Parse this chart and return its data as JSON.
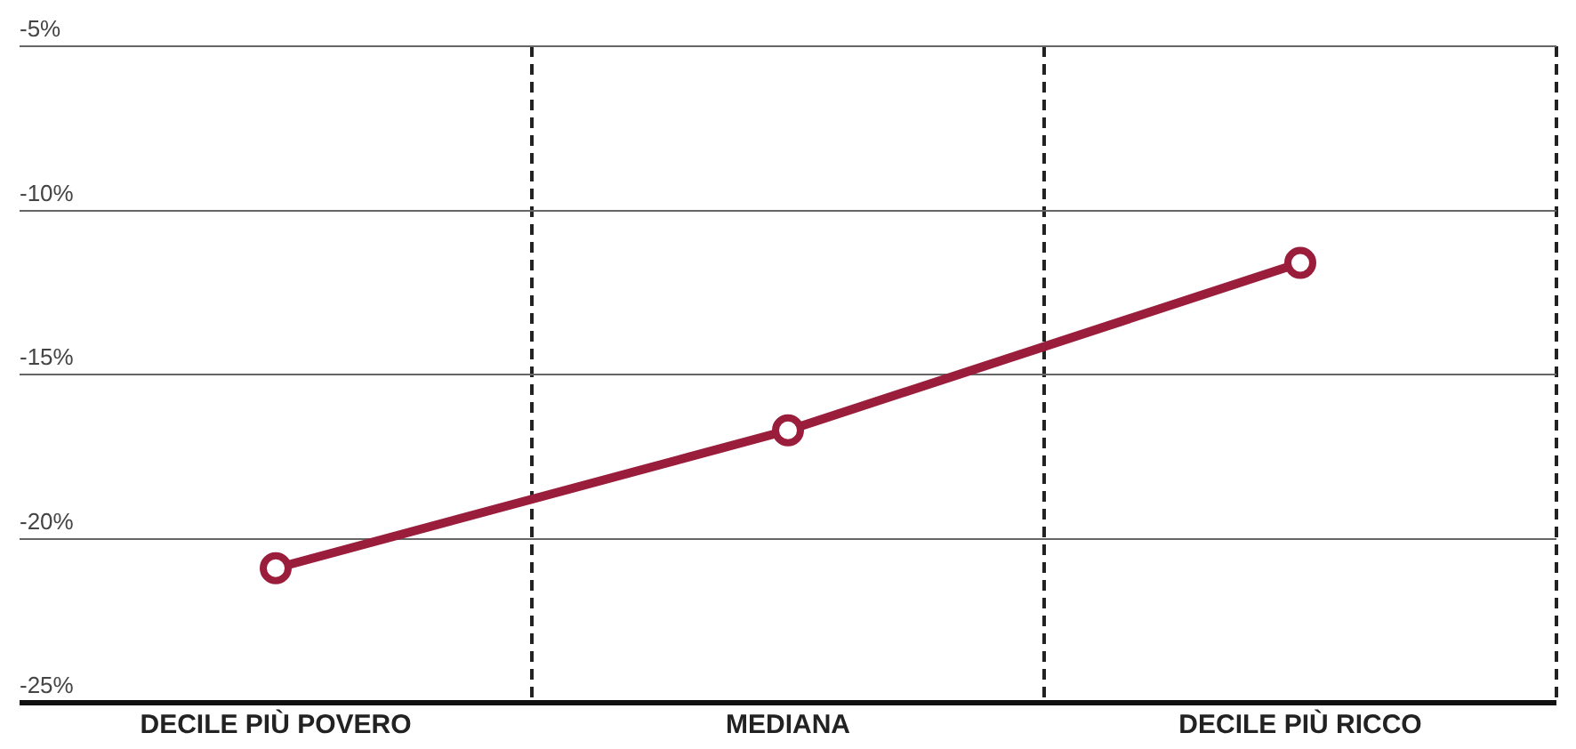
{
  "chart_data": {
    "type": "line",
    "categories": [
      "DECILE PIÙ POVERO",
      "MEDIANA",
      "DECILE PIÙ RICCO"
    ],
    "series": [
      {
        "color": "#9b1d3c",
        "values": [
          -20.9,
          -16.7,
          -11.6
        ]
      }
    ],
    "ylim": [
      -25,
      -5
    ],
    "yticks": [
      {
        "value": -25,
        "label": "-25%"
      },
      {
        "value": -20,
        "label": "-20%"
      },
      {
        "value": -15,
        "label": "-15%"
      },
      {
        "value": -10,
        "label": "-10%"
      },
      {
        "value": -5,
        "label": "-5%"
      }
    ],
    "grid": true,
    "marker": "circle",
    "line_style": "solid",
    "legend": false
  }
}
